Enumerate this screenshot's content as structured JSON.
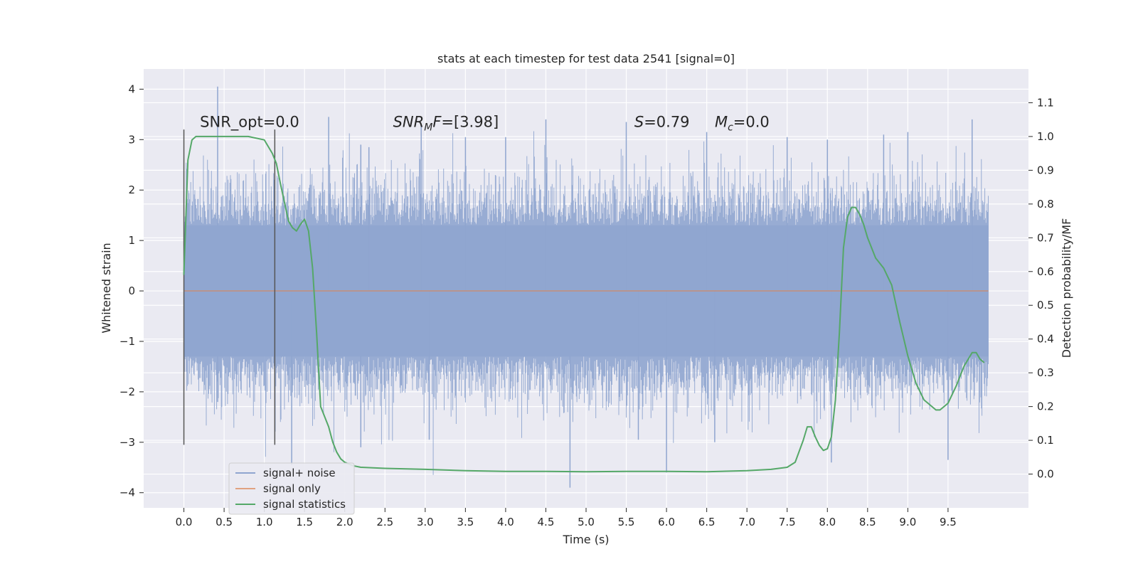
{
  "chart_data": {
    "type": "line",
    "title": "stats at each timestep for test data 2541 [signal=0]",
    "xlabel": "Time (s)",
    "ylabel": "Whitened strain",
    "y2label": "Detection probability/MF",
    "xlim": [
      -0.5,
      10.5
    ],
    "ylim": [
      -4.3,
      4.4
    ],
    "y2lim": [
      -0.1,
      1.2
    ],
    "x_ticks": [
      "0.0",
      "0.5",
      "1.0",
      "1.5",
      "2.0",
      "2.5",
      "3.0",
      "3.5",
      "4.0",
      "4.5",
      "5.0",
      "5.5",
      "6.0",
      "6.5",
      "7.0",
      "7.5",
      "8.0",
      "8.5",
      "9.0",
      "9.5"
    ],
    "y_ticks": [
      "−4",
      "−3",
      "−2",
      "−1",
      "0",
      "1",
      "2",
      "3",
      "4"
    ],
    "y2_ticks": [
      "0.0",
      "0.1",
      "0.2",
      "0.3",
      "0.4",
      "0.5",
      "0.6",
      "0.7",
      "0.8",
      "0.9",
      "1.0",
      "1.1"
    ],
    "grid": true,
    "legend_position": "lower-left",
    "colors": {
      "noise": "#8fa5cf",
      "signal": "#dd8452",
      "stats": "#55a868",
      "background": "#eaeaf2",
      "grid": "#ffffff",
      "vline": "#555555"
    },
    "series": [
      {
        "name": "signal+ noise",
        "kind": "noise-band",
        "x_range": [
          0.0,
          10.0
        ],
        "core_range": [
          -1.3,
          1.3
        ],
        "extremes": [
          {
            "x": 0.42,
            "y": 4.05
          },
          {
            "x": 0.42,
            "y": -2.2
          },
          {
            "x": 1.34,
            "y": -3.45
          },
          {
            "x": 1.8,
            "y": 3.45
          },
          {
            "x": 2.2,
            "y": -3.1
          },
          {
            "x": 2.2,
            "y": 2.9
          },
          {
            "x": 2.3,
            "y": 2.85
          },
          {
            "x": 2.95,
            "y": 3.3
          },
          {
            "x": 3.05,
            "y": -2.95
          },
          {
            "x": 3.5,
            "y": 3.05
          },
          {
            "x": 4.0,
            "y": 3.05
          },
          {
            "x": 4.5,
            "y": 3.4
          },
          {
            "x": 4.8,
            "y": -3.9
          },
          {
            "x": 5.5,
            "y": 3.35
          },
          {
            "x": 5.65,
            "y": -2.95
          },
          {
            "x": 6.0,
            "y": -3.6
          },
          {
            "x": 6.5,
            "y": 3.15
          },
          {
            "x": 6.6,
            "y": -3.0
          },
          {
            "x": 7.5,
            "y": 3.05
          },
          {
            "x": 8.0,
            "y": 3.0
          },
          {
            "x": 8.05,
            "y": -3.4
          },
          {
            "x": 8.7,
            "y": 3.1
          },
          {
            "x": 9.0,
            "y": 3.15
          },
          {
            "x": 9.5,
            "y": -3.35
          },
          {
            "x": 9.8,
            "y": 3.4
          }
        ]
      },
      {
        "name": "signal only",
        "kind": "line",
        "x": [
          0.0,
          10.0
        ],
        "y": [
          0.0,
          0.0
        ]
      },
      {
        "name": "signal statistics",
        "kind": "line",
        "axis": "right",
        "x": [
          0.0,
          0.05,
          0.1,
          0.15,
          0.2,
          0.3,
          0.5,
          0.8,
          1.0,
          1.1,
          1.15,
          1.2,
          1.3,
          1.35,
          1.4,
          1.45,
          1.5,
          1.55,
          1.6,
          1.65,
          1.7,
          1.8,
          1.85,
          1.9,
          1.95,
          2.0,
          2.1,
          2.2,
          2.5,
          3.0,
          3.5,
          4.0,
          4.5,
          5.0,
          5.5,
          6.0,
          6.5,
          7.0,
          7.3,
          7.5,
          7.6,
          7.7,
          7.75,
          7.8,
          7.85,
          7.9,
          7.95,
          8.0,
          8.05,
          8.1,
          8.15,
          8.2,
          8.25,
          8.3,
          8.35,
          8.4,
          8.45,
          8.5,
          8.6,
          8.7,
          8.8,
          8.9,
          9.0,
          9.1,
          9.2,
          9.3,
          9.35,
          9.4,
          9.45,
          9.5,
          9.6,
          9.7,
          9.8,
          9.85,
          9.9,
          9.95
        ],
        "y": [
          0.59,
          0.93,
          0.99,
          1.0,
          1.0,
          1.0,
          1.0,
          1.0,
          0.99,
          0.95,
          0.92,
          0.86,
          0.75,
          0.73,
          0.72,
          0.74,
          0.755,
          0.72,
          0.61,
          0.42,
          0.2,
          0.14,
          0.095,
          0.065,
          0.045,
          0.035,
          0.025,
          0.02,
          0.017,
          0.014,
          0.01,
          0.008,
          0.008,
          0.007,
          0.008,
          0.008,
          0.007,
          0.01,
          0.014,
          0.02,
          0.035,
          0.1,
          0.14,
          0.14,
          0.11,
          0.085,
          0.07,
          0.075,
          0.11,
          0.22,
          0.42,
          0.67,
          0.76,
          0.79,
          0.79,
          0.77,
          0.74,
          0.7,
          0.64,
          0.61,
          0.56,
          0.45,
          0.35,
          0.27,
          0.22,
          0.2,
          0.19,
          0.19,
          0.2,
          0.21,
          0.26,
          0.32,
          0.36,
          0.36,
          0.34,
          0.33
        ]
      }
    ],
    "vlines": [
      {
        "x": 0.0,
        "ymin": -3.05,
        "ymax": 3.2
      },
      {
        "x": 1.13,
        "ymin": -3.05,
        "ymax": 3.2
      }
    ],
    "annotations": [
      {
        "x": 0.2,
        "y": 3.25,
        "text": "SNR_opt=0.0",
        "style": "plain"
      },
      {
        "x": 2.6,
        "y": 3.25,
        "base": "SNR",
        "sub": "M",
        "rest": "F=[3.98]",
        "style": "math"
      },
      {
        "x": 5.6,
        "y": 3.25,
        "base": "S",
        "sub": "",
        "rest": "=0.79",
        "style": "math"
      },
      {
        "x": 6.6,
        "y": 3.25,
        "base": "M",
        "sub": "c",
        "rest": "=0.0",
        "style": "math"
      }
    ]
  }
}
